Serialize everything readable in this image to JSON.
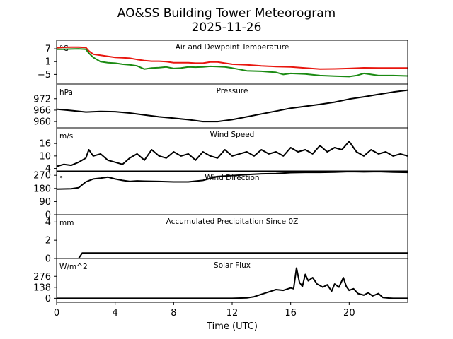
{
  "chart_data": {
    "type": "line",
    "title": "AO&SS Building Tower Meteorogram",
    "date": "2025-11-26",
    "xlabel": "Time (UTC)",
    "x_range": [
      0,
      24
    ],
    "x_ticks": [
      0,
      4,
      8,
      12,
      16,
      20
    ],
    "panels": [
      {
        "key": "temp",
        "title": "Air and Dewpoint Temperature",
        "unit": "°C",
        "ylim": [
          -9.5,
          11
        ],
        "yticks": [
          7,
          1,
          -5
        ],
        "ytick_labels": [
          "7",
          "1",
          "−5"
        ],
        "series": [
          {
            "name": "Air Temperature",
            "color": "#e8160e",
            "x": [
              0,
              0.5,
              1,
              1.5,
              2,
              2.2,
              2.5,
              3,
              3.5,
              4,
              4.5,
              5,
              5.5,
              6,
              6.5,
              7,
              7.5,
              8,
              8.5,
              9,
              9.5,
              10,
              10.5,
              11,
              11.5,
              12,
              13,
              14,
              15,
              16,
              17,
              18,
              19,
              20,
              21,
              22,
              23,
              24
            ],
            "y": [
              7.5,
              7.7,
              7.8,
              7.8,
              7.6,
              6.0,
              4.5,
              4.0,
              3.5,
              3.0,
              2.8,
              2.6,
              2.0,
              1.5,
              1.2,
              1.2,
              1.0,
              0.5,
              0.5,
              0.5,
              0.3,
              0.3,
              0.8,
              0.8,
              0.3,
              -0.2,
              -0.5,
              -1.0,
              -1.3,
              -1.5,
              -2.0,
              -2.5,
              -2.4,
              -2.2,
              -1.9,
              -2.0,
              -2.0,
              -2.0
            ]
          },
          {
            "name": "Dewpoint",
            "color": "#1a8a12",
            "x": [
              0,
              0.5,
              1,
              1.5,
              2,
              2.2,
              2.5,
              3,
              3.5,
              4,
              4.5,
              5,
              5.5,
              6,
              6.5,
              7,
              7.5,
              8,
              8.5,
              9,
              9.5,
              10,
              10.5,
              11,
              11.5,
              12,
              13,
              14,
              15,
              15.5,
              16,
              17,
              18,
              19,
              20,
              20.5,
              21,
              22,
              23,
              24
            ],
            "y": [
              6.8,
              6.8,
              6.9,
              7.0,
              6.8,
              5.0,
              3.0,
              1.0,
              0.5,
              0.3,
              -0.2,
              -0.5,
              -1.0,
              -2.5,
              -2.0,
              -1.8,
              -1.5,
              -2.2,
              -2.0,
              -1.5,
              -1.6,
              -1.5,
              -1.2,
              -1.3,
              -1.5,
              -2.0,
              -3.3,
              -3.5,
              -4.0,
              -5.0,
              -4.5,
              -4.8,
              -5.5,
              -5.8,
              -6.0,
              -5.5,
              -4.5,
              -5.5,
              -5.5,
              -5.7
            ]
          }
        ]
      },
      {
        "key": "pres",
        "title": "Pressure",
        "unit": "hPa",
        "ylim": [
          956.7,
          979.7
        ],
        "yticks": [
          972,
          966,
          960
        ],
        "ytick_labels": [
          "972",
          "966",
          "960"
        ],
        "series": [
          {
            "name": "Pressure",
            "color": "#000000",
            "x": [
              0,
              1,
              2,
              3,
              4,
              5,
              6,
              7,
              8,
              9,
              10,
              11,
              12,
              13,
              14,
              15,
              16,
              17,
              18,
              19,
              20,
              21,
              22,
              23,
              24
            ],
            "y": [
              966.5,
              965.8,
              965.0,
              965.3,
              965.2,
              964.5,
              963.5,
              962.5,
              961.8,
              961.0,
              960.0,
              960.0,
              961.0,
              962.5,
              964.0,
              965.5,
              967.0,
              968.0,
              969.0,
              970.2,
              971.8,
              973.0,
              974.3,
              975.5,
              976.5
            ]
          }
        ]
      },
      {
        "key": "wspd",
        "title": "Wind Speed",
        "unit": "m/s",
        "ylim": [
          2.5,
          23.5
        ],
        "yticks": [
          16,
          10,
          4
        ],
        "ytick_labels": [
          "16",
          "10",
          "4"
        ],
        "series": [
          {
            "name": "Wind Speed",
            "color": "#000000",
            "x": [
              0,
              0.5,
              1,
              1.5,
              2,
              2.2,
              2.5,
              3,
              3.5,
              4,
              4.5,
              5,
              5.5,
              6,
              6.5,
              7,
              7.5,
              8,
              8.5,
              9,
              9.5,
              10,
              10.5,
              11,
              11.5,
              12,
              12.5,
              13,
              13.5,
              14,
              14.5,
              15,
              15.5,
              16,
              16.5,
              17,
              17.5,
              18,
              18.5,
              19,
              19.5,
              20,
              20.5,
              21,
              21.5,
              22,
              22.5,
              23,
              23.5,
              24
            ],
            "y": [
              5,
              6,
              5.5,
              7,
              9,
              13,
              10,
              11,
              8,
              7,
              6,
              9,
              11,
              8,
              13,
              10,
              9,
              12,
              10,
              11,
              8,
              12,
              10,
              9,
              13,
              10,
              11,
              12,
              10,
              13,
              11,
              12,
              10,
              14,
              12,
              13,
              11,
              15,
              12,
              14,
              13,
              17,
              12,
              10,
              13,
              11,
              12,
              10,
              11,
              10
            ]
          }
        ]
      },
      {
        "key": "wdir",
        "title": "Wind Direction",
        "unit": "°",
        "ylim": [
          0,
          300
        ],
        "yticks": [
          270,
          180,
          90,
          0
        ],
        "ytick_labels": [
          "270",
          "180",
          "90",
          "0"
        ],
        "series": [
          {
            "name": "Wind Direction",
            "color": "#000000",
            "x": [
              0,
              1,
              1.5,
              2,
              2.5,
              3,
              3.5,
              4,
              4.5,
              5,
              5.5,
              6,
              7,
              8,
              9,
              10,
              11,
              12,
              13,
              14,
              15,
              16,
              17,
              18,
              19,
              20,
              21,
              22,
              23,
              24
            ],
            "y": [
              175,
              178,
              185,
              225,
              245,
              250,
              258,
              245,
              235,
              228,
              232,
              230,
              228,
              225,
              225,
              235,
              262,
              268,
              275,
              280,
              282,
              288,
              290,
              290,
              292,
              295,
              293,
              295,
              292,
              290
            ]
          }
        ]
      },
      {
        "key": "precip",
        "title": "Accumulated Precipitation Since 0Z",
        "unit": "mm",
        "ylim": [
          0,
          4.8
        ],
        "yticks": [
          4,
          2,
          0
        ],
        "ytick_labels": [
          "4",
          "2",
          "0"
        ],
        "series": [
          {
            "name": "Accumulated Precipitation",
            "color": "#000000",
            "x": [
              0,
              1.5,
              1.75,
              24
            ],
            "y": [
              0,
              0,
              0.6,
              0.6
            ]
          }
        ]
      },
      {
        "key": "solar",
        "title": "Solar Flux",
        "unit": "W/m^2",
        "ylim": [
          -50,
          500
        ],
        "yticks": [
          276,
          138,
          0
        ],
        "ytick_labels": [
          "276",
          "138",
          "0"
        ],
        "series": [
          {
            "name": "Solar Flux",
            "color": "#000000",
            "x": [
              0,
              12,
              13,
              13.5,
              14,
              14.5,
              15,
              15.5,
              16,
              16.2,
              16.4,
              16.6,
              16.8,
              17,
              17.2,
              17.5,
              17.8,
              18,
              18.2,
              18.5,
              18.8,
              19,
              19.3,
              19.6,
              19.8,
              20,
              20.3,
              20.6,
              21,
              21.3,
              21.6,
              22,
              22.3,
              22.7,
              23,
              24
            ],
            "y": [
              0,
              0,
              5,
              20,
              50,
              80,
              110,
              100,
              130,
              120,
              380,
              200,
              150,
              300,
              220,
              260,
              180,
              160,
              140,
              170,
              90,
              180,
              140,
              260,
              150,
              100,
              120,
              60,
              40,
              70,
              30,
              60,
              10,
              3,
              0,
              0
            ]
          }
        ]
      }
    ]
  }
}
